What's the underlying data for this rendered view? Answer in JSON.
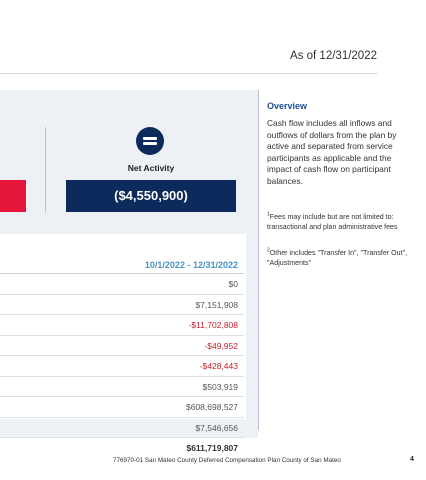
{
  "header": {
    "as_of": "As of 12/31/2022"
  },
  "net_activity": {
    "label": "Net Activity",
    "value": "($4,550,900)"
  },
  "table": {
    "period_header": "10/1/2022 - 12/31/2022",
    "rows": [
      {
        "value": "$0",
        "negative": false
      },
      {
        "value": "$7,151,908",
        "negative": false
      },
      {
        "value": "-$11,702,808",
        "negative": true
      },
      {
        "value": "-$49,952",
        "negative": true
      },
      {
        "value": "-$428,443",
        "negative": true
      },
      {
        "value": "$503,919",
        "negative": false
      },
      {
        "value": "$608,698,527",
        "negative": false
      },
      {
        "value": "$7,546,656",
        "negative": false
      },
      {
        "value": "$611,719,807",
        "negative": false
      }
    ]
  },
  "overview": {
    "title": "Overview",
    "body": "Cash flow includes all inflows and outflows of dollars from the plan by active and separated from service participants as applicable and the impact of cash flow on participant balances.",
    "footnote1_mark": "1",
    "footnote1": "Fees may include but are not limited to: transactional and plan administrative fees",
    "footnote2_mark": "2",
    "footnote2": "Other includes \"Transfer In\", \"Transfer Out\", \"Adjustments\""
  },
  "footer": {
    "text": "776970-01 San Mateo County Deferred Compensation Plan County of San Mateo",
    "page": "4"
  },
  "colors": {
    "navy": "#0d2a5c",
    "red": "#e4173a",
    "negative_text": "#c8202f",
    "header_blue": "#4a93c4",
    "overview_title": "#1f4e91",
    "panel_bg": "#edf0f4"
  },
  "icons": {
    "net_activity": "equals-circle-icon"
  }
}
